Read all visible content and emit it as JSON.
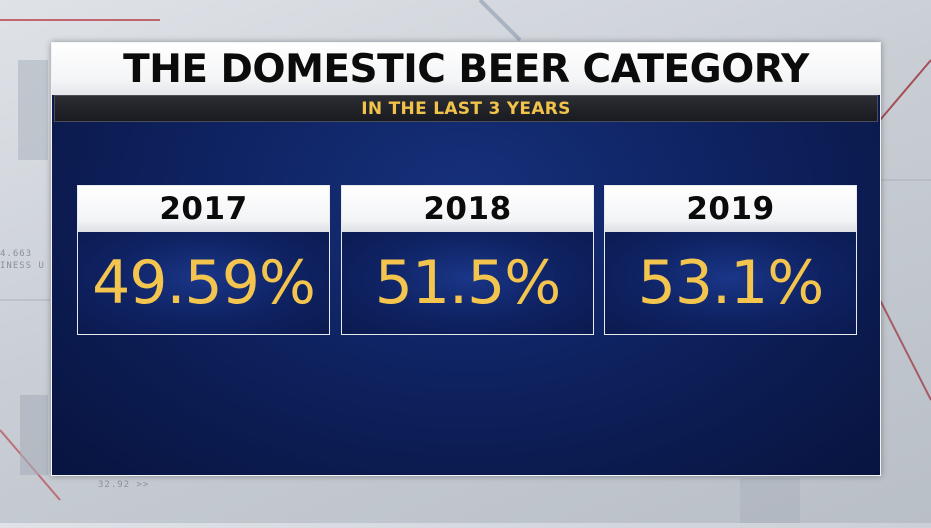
{
  "graphic": {
    "title": "THE DOMESTIC BEER CATEGORY",
    "subtitle": "IN THE LAST 3 YEARS"
  },
  "stats": [
    {
      "year": "2017",
      "value": "49.59%"
    },
    {
      "year": "2018",
      "value": "51.5%"
    },
    {
      "year": "2019",
      "value": "53.1%"
    }
  ],
  "background_ticker": {
    "line1": "4.663",
    "line2": "INESS U",
    "line3": "32.92 >>"
  },
  "colors": {
    "panel_blue": "#0f2464",
    "value_gold": "#f3c54e",
    "subtitle_gold": "#f2c34b",
    "header_white": "#ffffff"
  }
}
